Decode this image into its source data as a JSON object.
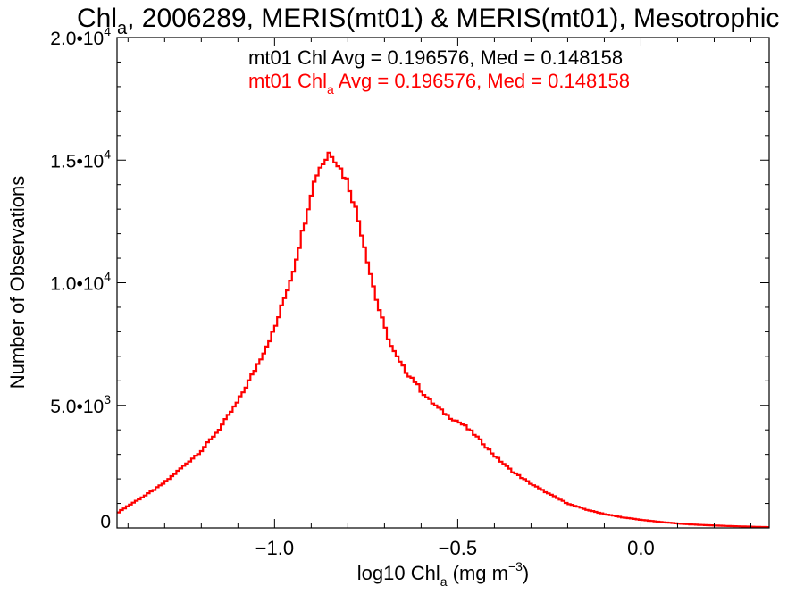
{
  "chart_data": {
    "type": "line",
    "title": {
      "pre": "Chl",
      "sub": "a",
      "post": ", 2006289, MERIS(mt01) & MERIS(mt01), Mesotrophic"
    },
    "xlabel": {
      "pre": "log10 Chl",
      "sub": "a",
      "mid": " (mg m",
      "sup": "−3",
      "post": ")"
    },
    "ylabel": "Number of Observations",
    "xlim": [
      -1.43,
      0.35
    ],
    "ylim": [
      0,
      20000
    ],
    "x_ticks": [
      {
        "value": -1.0,
        "label": "−1.0"
      },
      {
        "value": -0.5,
        "label": "−0.5"
      },
      {
        "value": 0.0,
        "label": "0.0"
      }
    ],
    "y_ticks": [
      {
        "value": 0,
        "mant": "0",
        "exp": ""
      },
      {
        "value": 5000,
        "mant": "5.0•10",
        "exp": "3"
      },
      {
        "value": 10000,
        "mant": "1.0•10",
        "exp": "4"
      },
      {
        "value": 15000,
        "mant": "1.5•10",
        "exp": "4"
      },
      {
        "value": 20000,
        "mant": "2.0•10",
        "exp": "4"
      }
    ],
    "annotations": [
      {
        "pre": "mt01 Chl",
        "sub": "",
        "post": " Avg = 0.196576, Med = 0.148158",
        "color": "#000000"
      },
      {
        "pre": "mt01 Chl",
        "sub": "a",
        "post": " Avg = 0.196576, Med = 0.148158",
        "color": "#ff0000"
      }
    ],
    "series": [
      {
        "color": "#ff0000",
        "step": true,
        "x": [
          -1.43,
          -1.4,
          -1.35,
          -1.3,
          -1.25,
          -1.2,
          -1.15,
          -1.1,
          -1.05,
          -1.0,
          -0.95,
          -0.92,
          -0.9,
          -0.88,
          -0.86,
          -0.85,
          -0.84,
          -0.83,
          -0.82,
          -0.8,
          -0.78,
          -0.76,
          -0.74,
          -0.72,
          -0.7,
          -0.68,
          -0.66,
          -0.64,
          -0.62,
          -0.6,
          -0.58,
          -0.55,
          -0.52,
          -0.5,
          -0.48,
          -0.45,
          -0.4,
          -0.35,
          -0.3,
          -0.25,
          -0.2,
          -0.15,
          -0.1,
          -0.05,
          0.0,
          0.05,
          0.1,
          0.15,
          0.2,
          0.25,
          0.3,
          0.35
        ],
        "y": [
          600,
          900,
          1350,
          1850,
          2500,
          3150,
          4050,
          5150,
          6550,
          8100,
          10450,
          12300,
          13700,
          14650,
          15050,
          15350,
          15200,
          14950,
          14650,
          14100,
          13100,
          11900,
          10500,
          9200,
          8200,
          7350,
          6800,
          6350,
          6050,
          5600,
          5250,
          4850,
          4500,
          4350,
          4150,
          3750,
          2950,
          2300,
          1800,
          1380,
          1000,
          750,
          570,
          430,
          330,
          250,
          180,
          130,
          100,
          70,
          50,
          30
        ]
      }
    ]
  }
}
